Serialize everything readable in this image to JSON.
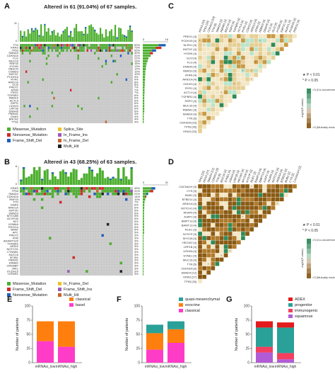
{
  "panels": {
    "A": {
      "label": "A",
      "title": "Altered in 61 (91.04%) of 67 samples.",
      "top_axis_max": "11",
      "side_axis_max": "16",
      "genes": [
        "TTN",
        "KRAS",
        "TP53",
        "SMAD4",
        "CDKN2A",
        "FLG",
        "MUC16",
        "RNF43",
        "HYDIN",
        "OBSCN",
        "CSMD3",
        "KMT2C",
        "PCDH15",
        "RYR1",
        "ARID1A",
        "GLI3",
        "PREX1",
        "ATRN",
        "FRG1",
        "TGFBR2",
        "RBM10",
        "ACTL9",
        "SSPO",
        "CDH23",
        "LRP1B",
        "DNAH5",
        "PBRM1",
        "GNAS",
        "BRCA2",
        "TTN2"
      ],
      "percents": [
        "90%",
        "73%",
        "52%",
        "40%",
        "31%",
        "22%",
        "19%",
        "15%",
        "13%",
        "12%",
        "10%",
        "10%",
        "9%",
        "9%",
        "8%",
        "8%",
        "7%",
        "7%",
        "7%",
        "6%",
        "6%",
        "6%",
        "6%",
        "6%",
        "6%",
        "6%",
        "4%",
        "4%",
        "4%",
        "4%"
      ]
    },
    "B": {
      "label": "B",
      "title": "Altered in 43 (68.25%) of 63 samples.",
      "top_axis_max": "8",
      "side_axis_max": "31",
      "genes": [
        "KRAS",
        "TP53",
        "SMAD4",
        "CDKN2A",
        "RNF43",
        "TTN",
        "GNAS",
        "ARID1A",
        "KMT2D",
        "SMAD3",
        "MYO18B",
        "ACVR1B",
        "NF2",
        "KDM6A",
        "PIK3CA",
        "BRAF",
        "APC",
        "PREX2",
        "ATM",
        "ADAMTS20",
        "TGFBR2",
        "ARID2",
        "NOTCH1",
        "CTNNB1",
        "MUC16",
        "SF3B1",
        "PBRM1",
        "ERBB2",
        "CREBBP",
        "JAK1",
        "PCDH15",
        "TGFBR1"
      ],
      "percents": [
        "49%",
        "41%",
        "21%",
        "14%",
        "10%",
        "7%",
        "6%",
        "6%",
        "5%",
        "5%",
        "5%",
        "5%",
        "5%",
        "5%",
        "5%",
        "5%",
        "5%",
        "3%",
        "3%",
        "3%",
        "3%",
        "3%",
        "3%",
        "3%",
        "3%",
        "3%",
        "3%",
        "3%",
        "3%",
        "3%",
        "3%",
        "3%"
      ]
    },
    "legend_A": [
      "Missense_Mutation",
      "Nonsense_Mutation",
      "Frame_Shift_Del",
      "Splice_Site",
      "In_Frame_Ins",
      "In_Frame_Del",
      "Multi_Hit"
    ],
    "legend_B": [
      "Missense_Mutation",
      "Frame_Shift_Del",
      "Nonsense_Mutation",
      "In_Frame_Del",
      "Frame_Shift_Ins",
      "Multi_Hit"
    ],
    "C": {
      "label": "C",
      "genes": [
        "PREX1 [4]",
        "PCDH15 [4]",
        "NLRX1 [4]",
        "KMT2C [4]",
        "HYDIN [4]",
        "GLI3 [4]",
        "FLG [4]",
        "DNAH5 [4]",
        "RBM10 [4]",
        "ATRN [4]",
        "ARID1A [4]",
        "CDH23 [4]",
        "RYR1 [4]",
        "ACTL9 [4]",
        "TGFBR2 [4]",
        "SSPO [4]",
        "MUC16 [4]",
        "PBRM1 [4]",
        "SMAD4 [4]",
        "TTN [5]",
        "CDKN2A [16]",
        "TP53 [26]",
        "KRAS [33]"
      ],
      "legend_top": ">3 (Co-occurence)",
      "legend_bottom": ">3 (Mutually exclusive)",
      "legend_axis": "-log10(P-value)",
      "sig1": "P < 0.01",
      "sig2": "P < 0.05"
    },
    "D": {
      "label": "D",
      "genes": [
        "CACNA1H [3]",
        "CYS [3]",
        "BUB1 [3]",
        "BTBD11 [4]",
        "ARID1A [4]",
        "NOTCH1 [4]",
        "AKAP6 [4]",
        "AJAP1 [4]",
        "BMPT13 [4]",
        "BAMT13 [4]",
        "RLEC [3]",
        "NYSYP [3]",
        "MYO18 [4]",
        "HECW2 [4]",
        "LRP1B [4]",
        "USH2A [4]",
        "SYNE1 [4]",
        "MUC16 [4]",
        "TTN [5]",
        "CDKN2A [9]",
        "SMAD4 [12]",
        "KRAS [27]",
        "TP53 [26]"
      ],
      "legend_top": ">3 (Co-occurence)",
      "legend_bottom": ">3 (Mutually exclusive)",
      "legend_axis": "-log10(P-value)",
      "sig1": "P < 0.01",
      "sig2": "P < 0.05"
    }
  },
  "colors": {
    "missense": "#4caf2e",
    "nonsense": "#d62728",
    "frameshift_del": "#1f5fbf",
    "splice": "#f0c020",
    "inframe_ins": "#9b59b6",
    "inframe_del": "#c7632a",
    "multi": "#222222",
    "grey_cell": "#cfcfcf",
    "bar_green": "#4caf2e",
    "heat_brown_dark": "#8a5a14",
    "heat_brown_light": "#f3e6c4",
    "heat_green": "#2e8b57",
    "stack_pink": "#ff3cc8",
    "stack_orange": "#ff7f0e",
    "stack_teal": "#2aa198",
    "stack_red": "#e41a1c",
    "stack_blue": "#1f77b4",
    "stack_purple": "#b15bd6",
    "stack_pinkred": "#f43f5e"
  },
  "chart_data": [
    {
      "panel": "E",
      "type": "bar",
      "stacked": true,
      "categories": [
        "mRNAsi_low",
        "mRNAsi_high"
      ],
      "series": [
        {
          "name": "basel",
          "values": [
            38,
            28
          ]
        },
        {
          "name": "classical",
          "values": [
            35,
            45
          ]
        }
      ],
      "ylabel": "Number of patients",
      "ylim": [
        0,
        100
      ],
      "yticks": [
        0,
        25,
        50,
        75,
        100
      ],
      "legend": "top-right"
    },
    {
      "panel": "F",
      "type": "bar",
      "stacked": true,
      "categories": [
        "mRNAsi_low",
        "mRNAsi_high"
      ],
      "series": [
        {
          "name": "classical",
          "values": [
            23,
            35
          ]
        },
        {
          "name": "exocrine",
          "values": [
            29,
            24
          ]
        },
        {
          "name": "quasi-mesenchymal",
          "values": [
            15,
            14
          ]
        }
      ],
      "ylabel": "Number of patients",
      "ylim": [
        0,
        100
      ],
      "yticks": [
        0,
        25,
        50,
        75,
        100
      ],
      "legend": "top-right"
    },
    {
      "panel": "G",
      "type": "bar",
      "stacked": true,
      "categories": [
        "mRNAsi_low",
        "mRNAsi_high"
      ],
      "series": [
        {
          "name": "squamous",
          "values": [
            18,
            6
          ]
        },
        {
          "name": "immunogenic",
          "values": [
            10,
            11
          ]
        },
        {
          "name": "progenitor",
          "values": [
            34,
            45
          ]
        },
        {
          "name": "ADEX",
          "values": [
            11,
            9
          ]
        }
      ],
      "ylabel": "Number of patients",
      "ylim": [
        0,
        100
      ],
      "yticks": [
        0,
        25,
        50,
        75,
        100
      ],
      "legend": "top-right"
    }
  ]
}
